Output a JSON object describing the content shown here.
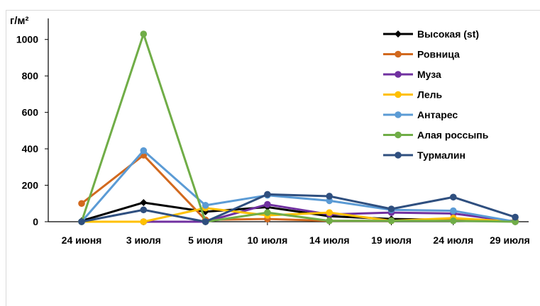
{
  "chart_data": {
    "type": "line",
    "ylabel": "г/м²",
    "categories": [
      "24 июня",
      "3 июля",
      "5 июля",
      "10 июля",
      "14 июля",
      "19 июля",
      "24 июля",
      "29 июля"
    ],
    "ylim": [
      0,
      1100
    ],
    "yticks": [
      0,
      200,
      400,
      600,
      800,
      1000
    ],
    "grid": false,
    "legend_position": "top-right",
    "series": [
      {
        "name": "Высокая (st)",
        "color": "#000000",
        "marker": "diamond",
        "values": [
          5,
          105,
          55,
          80,
          30,
          15,
          10,
          5
        ]
      },
      {
        "name": "Ровница",
        "color": "#d2691e",
        "marker": "circle",
        "values": [
          100,
          365,
          10,
          15,
          5,
          5,
          15,
          5
        ]
      },
      {
        "name": "Муза",
        "color": "#7030a0",
        "marker": "circle",
        "values": [
          0,
          0,
          0,
          95,
          40,
          50,
          45,
          0
        ]
      },
      {
        "name": "Лель",
        "color": "#ffc000",
        "marker": "circle",
        "values": [
          0,
          0,
          75,
          35,
          50,
          5,
          20,
          0
        ]
      },
      {
        "name": "Антарес",
        "color": "#5b9bd5",
        "marker": "circle",
        "values": [
          0,
          390,
          90,
          145,
          115,
          65,
          60,
          0
        ]
      },
      {
        "name": "Алая россыпь",
        "color": "#70ad47",
        "marker": "circle",
        "values": [
          0,
          1030,
          0,
          50,
          5,
          5,
          5,
          0
        ]
      },
      {
        "name": "Турмалин",
        "color": "#2f4f7f",
        "marker": "circle",
        "values": [
          0,
          65,
          0,
          150,
          140,
          70,
          135,
          25
        ]
      }
    ]
  }
}
